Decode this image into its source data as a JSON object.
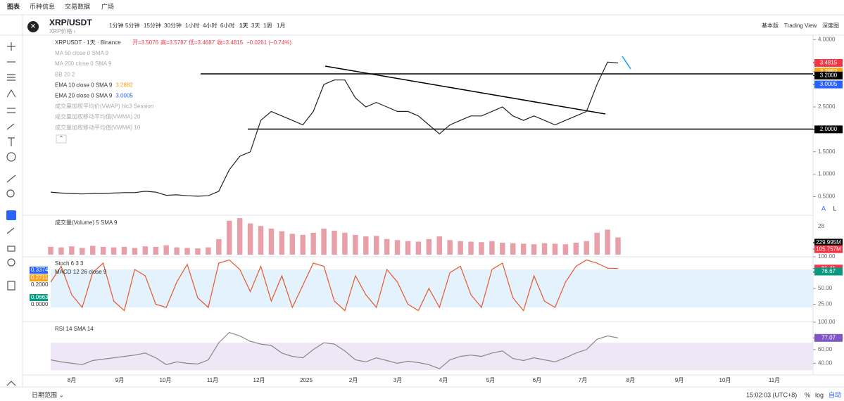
{
  "top_tabs": [
    "图表",
    "币种信息",
    "交易数据",
    "广场"
  ],
  "symbol": {
    "name": "XRP/USDT",
    "sub": "XRP价格 ›"
  },
  "intervals": [
    "1分钟",
    "5分钟",
    "15分钟",
    "30分钟",
    "1小时",
    "4小时",
    "6小时",
    "1天",
    "3天",
    "1周",
    "1月"
  ],
  "views": [
    "基本版",
    "Trading View",
    "深度图"
  ],
  "ohlc": {
    "title": "XRPUSDT · 1天 · Binance",
    "open": "开=3.5076",
    "high": "高=3.5787",
    "low": "低=3.4687",
    "close": "收=3.4815",
    "change": "−0.0261 (−0.74%)"
  },
  "indicators": [
    {
      "name": "MA 50 close 0 SMA 9"
    },
    {
      "name": "MA 200 close 0 SMA 9"
    },
    {
      "name": "BB 20 2"
    },
    {
      "name": "EMA 10 close 0 SMA 9",
      "value": "3.2882"
    },
    {
      "name": "EMA 20 close 0 SMA 9",
      "value": "3.0005"
    },
    {
      "name": "成交量加权平均价(VWAP) hlc3 Session"
    },
    {
      "name": "成交量加权移动平均值(VWMA) 20"
    },
    {
      "name": "成交量加权移动平均值(VWMA) 10"
    }
  ],
  "x_axis_labels": [
    "8月",
    "9月",
    "10月",
    "11月",
    "12月",
    "2025",
    "2月",
    "3月",
    "4月",
    "5月",
    "6月",
    "7月",
    "8月",
    "9月",
    "10月",
    "11月"
  ],
  "chart_data": [
    {
      "type": "line",
      "name": "price",
      "color": "#222",
      "ylim": [
        0.1,
        4.1
      ],
      "yticks": [
        {
          "value": 4,
          "label": "4.0000"
        },
        {
          "value": 3.5,
          "label": "3.5000"
        },
        {
          "value": 3,
          "label": "3.0000"
        },
        {
          "value": 2.5,
          "label": "2.5000"
        },
        {
          "value": 2,
          "label": "2.0000"
        },
        {
          "value": 1.5,
          "label": "1.5000"
        },
        {
          "value": 1,
          "label": "1.0000"
        },
        {
          "value": 0.5,
          "label": "0.5000"
        }
      ],
      "values": [
        0.6,
        0.58,
        0.57,
        0.56,
        0.57,
        0.57,
        0.58,
        0.59,
        0.59,
        0.62,
        0.6,
        0.53,
        0.54,
        0.52,
        0.51,
        0.52,
        0.62,
        1.1,
        1.4,
        1.5,
        2.2,
        2.4,
        2.3,
        2.2,
        2.1,
        2.4,
        3.0,
        3.1,
        3.1,
        2.7,
        2.5,
        2.6,
        2.5,
        2.4,
        2.4,
        2.3,
        2.1,
        1.9,
        2.1,
        2.2,
        2.3,
        2.3,
        2.4,
        2.5,
        2.3,
        2.2,
        2.3,
        2.2,
        2.1,
        2.2,
        2.3,
        2.4,
        3.0,
        3.5,
        3.48
      ],
      "price_tags": [
        {
          "value": 3.4815,
          "label": "3.4815",
          "color": "#f23645"
        },
        {
          "value": 3.2882,
          "label": "3.2882",
          "color": "#f7a21b"
        },
        {
          "value": 3.2,
          "label": "3.2000",
          "color": "#000000"
        },
        {
          "value": 3.0005,
          "label": "3.0005",
          "color": "#2962ff"
        },
        {
          "value": 2,
          "label": "2.0000",
          "color": "#000000"
        }
      ]
    },
    {
      "type": "bar",
      "name": "volume",
      "title": "成交量(Volume) 5 SMA 9",
      "color": "#e8a0a8",
      "ylim": [
        0,
        742
      ],
      "axis_label": "28",
      "values": [
        150,
        140,
        160,
        130,
        170,
        150,
        140,
        150,
        130,
        160,
        150,
        180,
        140,
        130,
        120,
        140,
        300,
        650,
        700,
        600,
        550,
        500,
        450,
        400,
        380,
        420,
        500,
        460,
        420,
        380,
        350,
        360,
        300,
        280,
        260,
        250,
        300,
        350,
        280,
        260,
        250,
        240,
        260,
        230,
        220,
        210,
        200,
        220,
        210,
        200,
        230,
        260,
        420,
        480,
        330
      ],
      "tags": [
        {
          "value": 229.995,
          "label": "229.995M",
          "color": "#000000"
        },
        {
          "value": 105.757,
          "label": "105.757M",
          "color": "#f23645"
        }
      ]
    },
    {
      "type": "line",
      "name": "stoch",
      "title": "Stoch 6 3 3",
      "color": "#e8562a",
      "ylim": [
        0,
        100
      ],
      "yticks": [
        {
          "value": 100,
          "label": "100.00"
        },
        {
          "value": 75,
          "label": "75.00"
        },
        {
          "value": 50,
          "label": "50.00"
        },
        {
          "value": 25,
          "label": "25.00"
        }
      ],
      "values": [
        60,
        85,
        40,
        20,
        75,
        90,
        30,
        15,
        80,
        70,
        25,
        20,
        60,
        88,
        35,
        20,
        90,
        95,
        80,
        45,
        85,
        30,
        70,
        20,
        55,
        90,
        85,
        30,
        15,
        70,
        40,
        20,
        80,
        60,
        25,
        15,
        50,
        20,
        75,
        85,
        40,
        20,
        80,
        90,
        35,
        15,
        70,
        30,
        20,
        60,
        85,
        95,
        90,
        82,
        81.41
      ],
      "tags": [
        {
          "value": 81.41,
          "label": "81.41",
          "color": "#f23645"
        },
        {
          "value": 76.67,
          "label": "76.67",
          "color": "#089981"
        }
      ],
      "macd": {
        "title": "MACD 12 26 close 9",
        "labels": [
          {
            "label": "0.3374",
            "color": "#2962ff"
          },
          {
            "label": "0.2711",
            "color": "#f7a21b"
          },
          {
            "label": "0.2000",
            "color": ""
          },
          {
            "label": "0.0663",
            "color": "#089981"
          },
          {
            "label": "0.0000",
            "color": ""
          }
        ]
      }
    },
    {
      "type": "line",
      "name": "rsi",
      "title": "RSI 14 SMA 14",
      "color": "#888",
      "ylim": [
        26,
        100
      ],
      "yticks": [
        {
          "value": 100,
          "label": "100.00"
        },
        {
          "value": 60,
          "label": "60.00"
        },
        {
          "value": 40,
          "label": "40.00"
        }
      ],
      "values": [
        45,
        42,
        40,
        38,
        44,
        46,
        48,
        50,
        52,
        55,
        48,
        38,
        42,
        40,
        39,
        45,
        70,
        85,
        80,
        72,
        68,
        66,
        55,
        50,
        48,
        60,
        70,
        68,
        58,
        45,
        42,
        48,
        44,
        40,
        43,
        41,
        38,
        32,
        45,
        50,
        52,
        50,
        55,
        58,
        47,
        44,
        48,
        45,
        42,
        48,
        55,
        60,
        75,
        80,
        77.07
      ],
      "tags": [
        {
          "value": 77.07,
          "label": "77.07",
          "color": "#7e57c2"
        }
      ]
    }
  ],
  "footer": {
    "range": "日期范围 ⌄",
    "time": "15:02:03 (UTC+8)",
    "pct": "%",
    "log": "log",
    "auto": "自动"
  },
  "scale_buttons": [
    "A",
    "L"
  ]
}
